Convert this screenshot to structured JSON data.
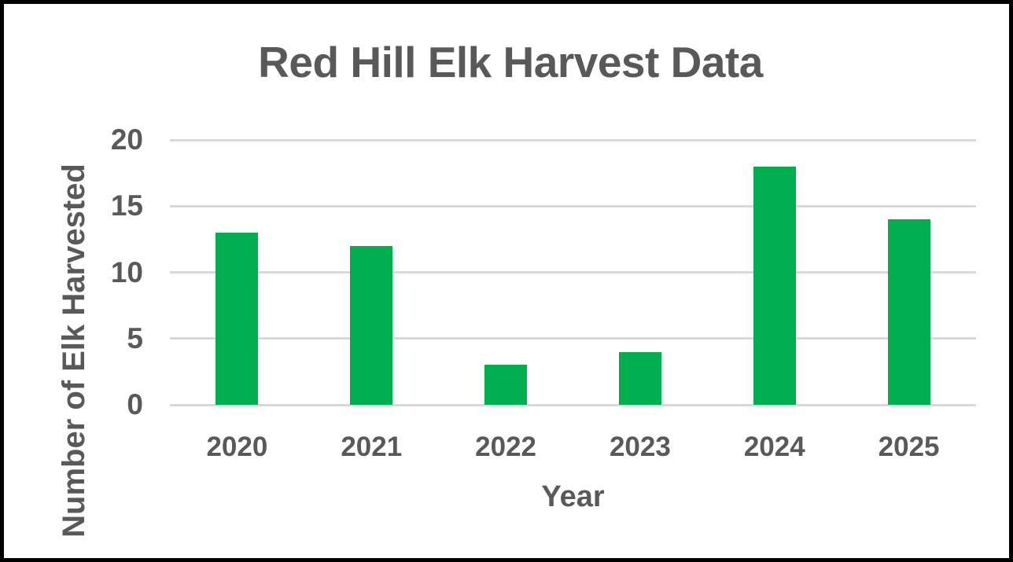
{
  "chart_data": {
    "type": "bar",
    "title": "Red Hill Elk Harvest Data",
    "xlabel": "Year",
    "ylabel": "Number of Elk Harvested",
    "categories": [
      "2020",
      "2021",
      "2022",
      "2023",
      "2024",
      "2025"
    ],
    "values": [
      13,
      12,
      3,
      4,
      18,
      14
    ],
    "ylim": [
      0,
      20
    ],
    "yticks": [
      0,
      5,
      10,
      15,
      20
    ],
    "grid": true,
    "legend": "none",
    "colors": {
      "bar": "#00ae50",
      "gridline": "#d9d9d9",
      "text": "#595959",
      "frame_border": "#000000",
      "background": "#ffffff"
    }
  }
}
